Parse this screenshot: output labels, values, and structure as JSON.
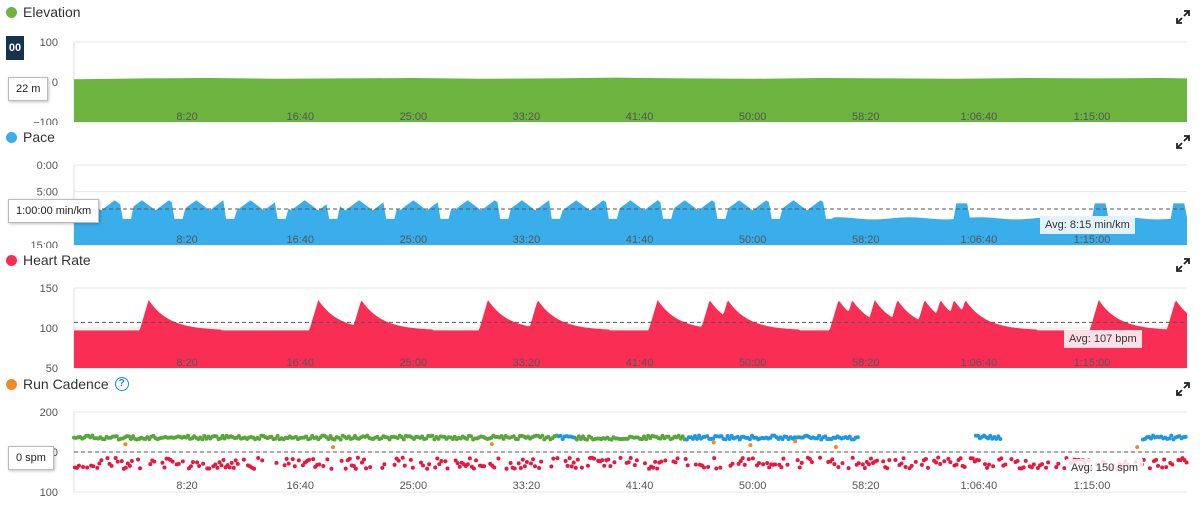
{
  "colors": {
    "elevation": "#6db33f",
    "pace": "#3aaeea",
    "heart_rate": "#fa2d55",
    "cadence": "#f08a24",
    "cad_green": "#57a639",
    "cad_blue": "#1e96e0",
    "cad_red": "#e8173f"
  },
  "icons": {
    "expand": "expand-arrows-icon",
    "help": "question-circle-icon"
  },
  "x_ticks": [
    "8:20",
    "16:40",
    "25:00",
    "33:20",
    "41:40",
    "50:00",
    "58:20",
    "1:06:40",
    "1:15:00"
  ],
  "panels": {
    "elevation": {
      "title": "Elevation",
      "readout": "22 m",
      "badge": "00"
    },
    "pace": {
      "title": "Pace",
      "readout": "1:00:00 min/km",
      "avg": "Avg: 8:15 min/km"
    },
    "heart_rate": {
      "title": "Heart Rate",
      "avg": "Avg: 107 bpm"
    },
    "cadence": {
      "title": "Run Cadence",
      "help": "?",
      "readout": "0 spm",
      "avg": "Avg: 150 spm"
    }
  },
  "chart_data": [
    {
      "type": "area",
      "name": "elevation",
      "y_ticks": [
        "100",
        "0",
        "−100"
      ],
      "ylim": [
        -100,
        100
      ],
      "xlim_seconds": [
        0,
        4920
      ],
      "x": [
        0,
        300,
        600,
        900,
        1200,
        1500,
        1800,
        2100,
        2400,
        2700,
        3000,
        3300,
        3600,
        3900,
        4200,
        4500,
        4800,
        4920
      ],
      "values": [
        0,
        2,
        3,
        1,
        2,
        3,
        1,
        2,
        4,
        2,
        1,
        3,
        2,
        1,
        3,
        2,
        3,
        2
      ]
    },
    {
      "type": "area",
      "name": "pace",
      "y_ticks": [
        "0:00",
        "5:00",
        "15:00"
      ],
      "ylim_min_per_km": [
        0,
        15
      ],
      "inverted": true,
      "avg_min_per_km": 8.25,
      "spikes_seconds": [
        230,
        460,
        690,
        920,
        1150,
        1400,
        1640,
        1900,
        2130,
        2380,
        2620,
        2860,
        3100,
        3340
      ],
      "base_min_per_km": 8.5,
      "peak_min_per_km": 6.4,
      "late_base_min_per_km": 10.0,
      "late_spikes_seconds": [
        3920,
        4540,
        4880
      ]
    },
    {
      "type": "area",
      "name": "heart_rate",
      "y_ticks": [
        "150",
        "100",
        "50"
      ],
      "ylim": [
        50,
        150
      ],
      "avg": 107,
      "baseline": 97,
      "peak": 135,
      "peaks_seconds": [
        330,
        1080,
        1270,
        1830,
        2050,
        2580,
        2810,
        2890,
        3380,
        3440,
        3540,
        3640,
        3760,
        3830,
        3890,
        3940,
        4530,
        4870
      ]
    },
    {
      "type": "scatter",
      "name": "cadence",
      "y_ticks": [
        "200",
        "150",
        "100"
      ],
      "ylim": [
        100,
        200
      ],
      "avg": 150,
      "upper_band_spm": 168,
      "lower_band_spm": 136
    }
  ]
}
